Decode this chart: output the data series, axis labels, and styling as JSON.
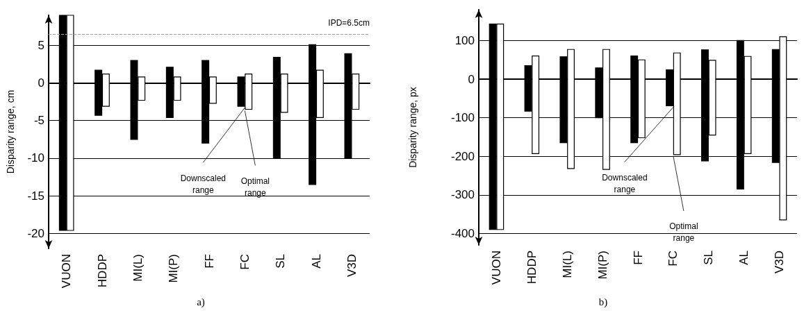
{
  "chart_data": [
    {
      "type": "bar",
      "ylabel": "Disparity range, cm",
      "categories": [
        "VUON",
        "HDDP",
        "MI(L)",
        "MI(P)",
        "FF",
        "FC",
        "SL",
        "AL",
        "V3D"
      ],
      "series": [
        {
          "color": "#000000",
          "base": [
            -19.6,
            -4.3,
            -7.5,
            -4.6,
            -8.0,
            -3.1,
            -10,
            -13.5,
            -10
          ],
          "values": [
            28.6,
            6.0,
            10.5,
            6.7,
            11.0,
            3.9,
            13.4,
            18.6,
            13.9
          ]
        },
        {
          "color": "#ffffff",
          "base": [
            -19.6,
            -3.1,
            -2.3,
            -2.3,
            -2.7,
            -3.5,
            -3.9,
            -4.6,
            -3.5
          ],
          "values": [
            28.6,
            4.3,
            3.1,
            3.1,
            3.5,
            4.7,
            5.1,
            6.3,
            4.7
          ]
        }
      ],
      "ylim": [
        -22,
        9
      ],
      "yticks": [
        -20,
        -15,
        -10,
        -5,
        0,
        5
      ],
      "grid": "y",
      "ref_lines": [
        {
          "axis": "y",
          "value": 6.5,
          "label": "IPD=6.5cm",
          "color": "#a0a0a0",
          "line_style": "dashed"
        }
      ],
      "annotations": [
        {
          "text": "Downscaled range",
          "x": "FC",
          "y": -3.1
        },
        {
          "text": "Optimal range",
          "x": "FC",
          "y": -3.5
        },
        "a)"
      ]
    },
    {
      "type": "bar",
      "ylabel": "Disparity range, px",
      "categories": [
        "VUON",
        "HDDP",
        "MI(L)",
        "MI(P)",
        "FF",
        "FC",
        "SL",
        "AL",
        "V3D"
      ],
      "series": [
        {
          "color": "#000000",
          "base": [
            -390,
            -83,
            -165,
            -100,
            -165,
            -69,
            -212,
            -285,
            -216
          ],
          "values": [
            533,
            118,
            223,
            129,
            225,
            93,
            288,
            385,
            293
          ]
        },
        {
          "color": "#ffffff",
          "base": [
            -390,
            -193,
            -232,
            -234,
            -152,
            -196,
            -145,
            -193,
            -365
          ],
          "values": [
            533,
            253,
            309,
            311,
            202,
            264,
            194,
            252,
            475
          ]
        }
      ],
      "ylim": [
        -430,
        180
      ],
      "yticks": [
        -400,
        -300,
        -200,
        -100,
        0,
        100
      ],
      "grid": "y",
      "annotations": [
        {
          "text": "Downscaled range",
          "x": "FC",
          "y": -69
        },
        {
          "text": "Optimal range",
          "x": "FC",
          "y": -196
        },
        "b)"
      ]
    }
  ]
}
